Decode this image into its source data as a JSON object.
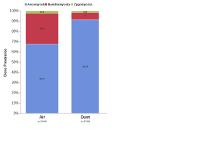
{
  "chart_data": {
    "type": "stacked_bar",
    "y_label": "Clone Prevalence",
    "categories": [
      "Air",
      "Dust"
    ],
    "sample_sizes": [
      "n=2499",
      "n=1208"
    ],
    "series": [
      {
        "name": "Ascomycota",
        "color": "#6e90dc",
        "values": [
          67.7,
          91.4
        ]
      },
      {
        "name": "Basidiomycota",
        "color": "#c23b4d",
        "values": [
          30.2,
          7.0
        ]
      },
      {
        "name": "Zygomycota",
        "color": "#9ccc52",
        "values": [
          2.1,
          1.6
        ]
      }
    ],
    "ylim": [
      0,
      100
    ],
    "yticks": [
      {
        "value": 0,
        "label": "0%"
      },
      {
        "value": 10,
        "label": "10%"
      },
      {
        "value": 20,
        "label": "20%"
      },
      {
        "value": 30,
        "label": "30%"
      },
      {
        "value": 40,
        "label": "40%"
      },
      {
        "value": 50,
        "label": "50%"
      },
      {
        "value": 60,
        "label": "60%"
      },
      {
        "value": 70,
        "label": "70%"
      },
      {
        "value": 80,
        "label": "80%"
      },
      {
        "value": 90,
        "label": "90%"
      },
      {
        "value": 100,
        "label": "100%"
      }
    ],
    "legend": "top"
  }
}
